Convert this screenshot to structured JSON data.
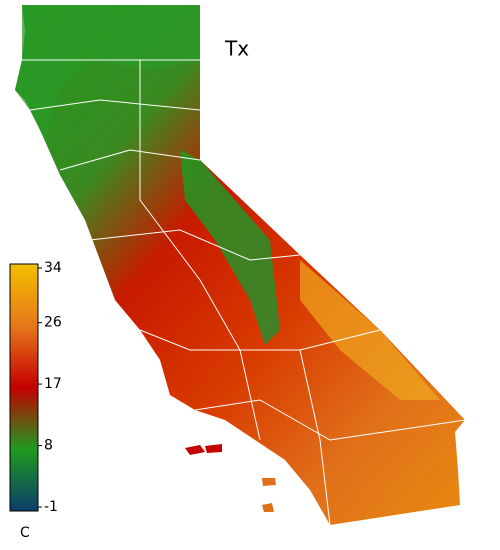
{
  "map": {
    "title": "Tx",
    "colorbar": {
      "lim": [
        -1,
        34
      ],
      "ticks": [
        -1,
        8,
        17,
        26,
        34
      ],
      "unit": "C",
      "colors": [
        "#0b3d6b",
        "#1f9a20",
        "#c40000",
        "#e6781a",
        "#f3bf00"
      ]
    }
  }
}
